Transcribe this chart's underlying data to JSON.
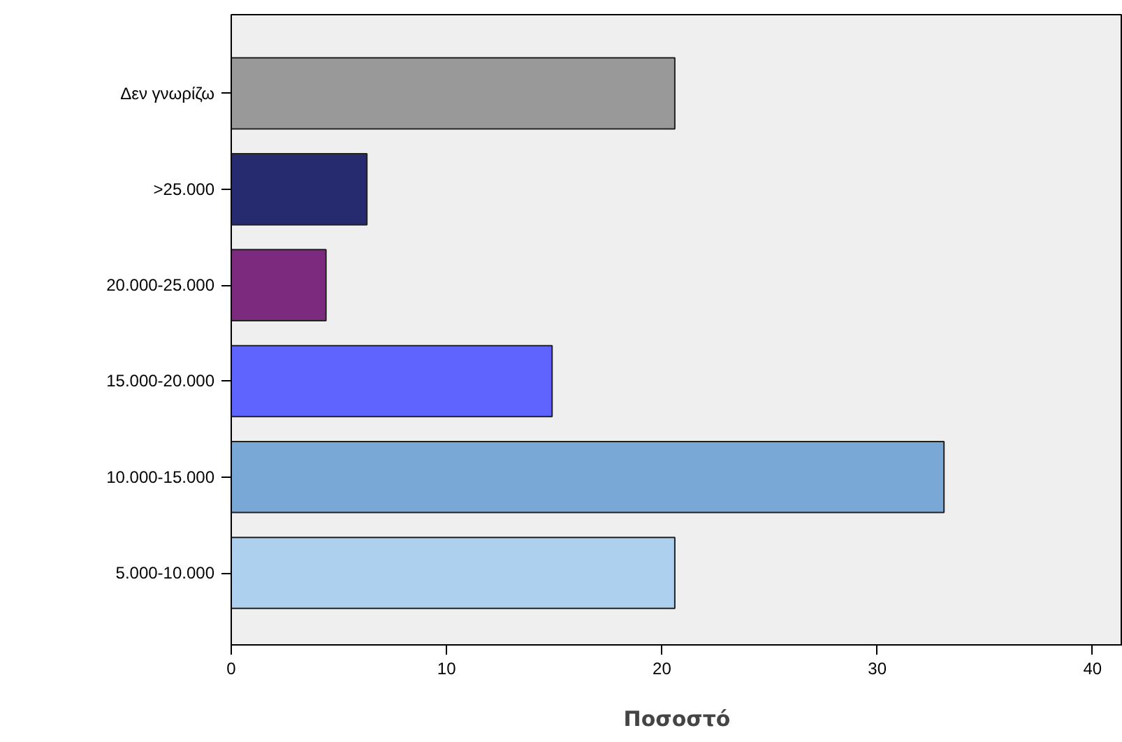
{
  "chart_data": {
    "type": "bar",
    "orientation": "horizontal",
    "xlabel": "Ποσοστό",
    "categories": [
      "Δεν γνωρίζω",
      ">25.000",
      "20.000-25.000",
      "15.000-20.000",
      "10.000-15.000",
      "5.000-10.000"
    ],
    "values": [
      20.6,
      6.3,
      4.4,
      14.9,
      33.1,
      20.6
    ],
    "colors": [
      "#999999",
      "#262a6e",
      "#7b2a7e",
      "#5f63ff",
      "#79a8d6",
      "#acd0ee"
    ],
    "xlim": [
      0,
      41.4
    ],
    "xticks": [
      0,
      10,
      20,
      30,
      40
    ],
    "grid": false
  }
}
